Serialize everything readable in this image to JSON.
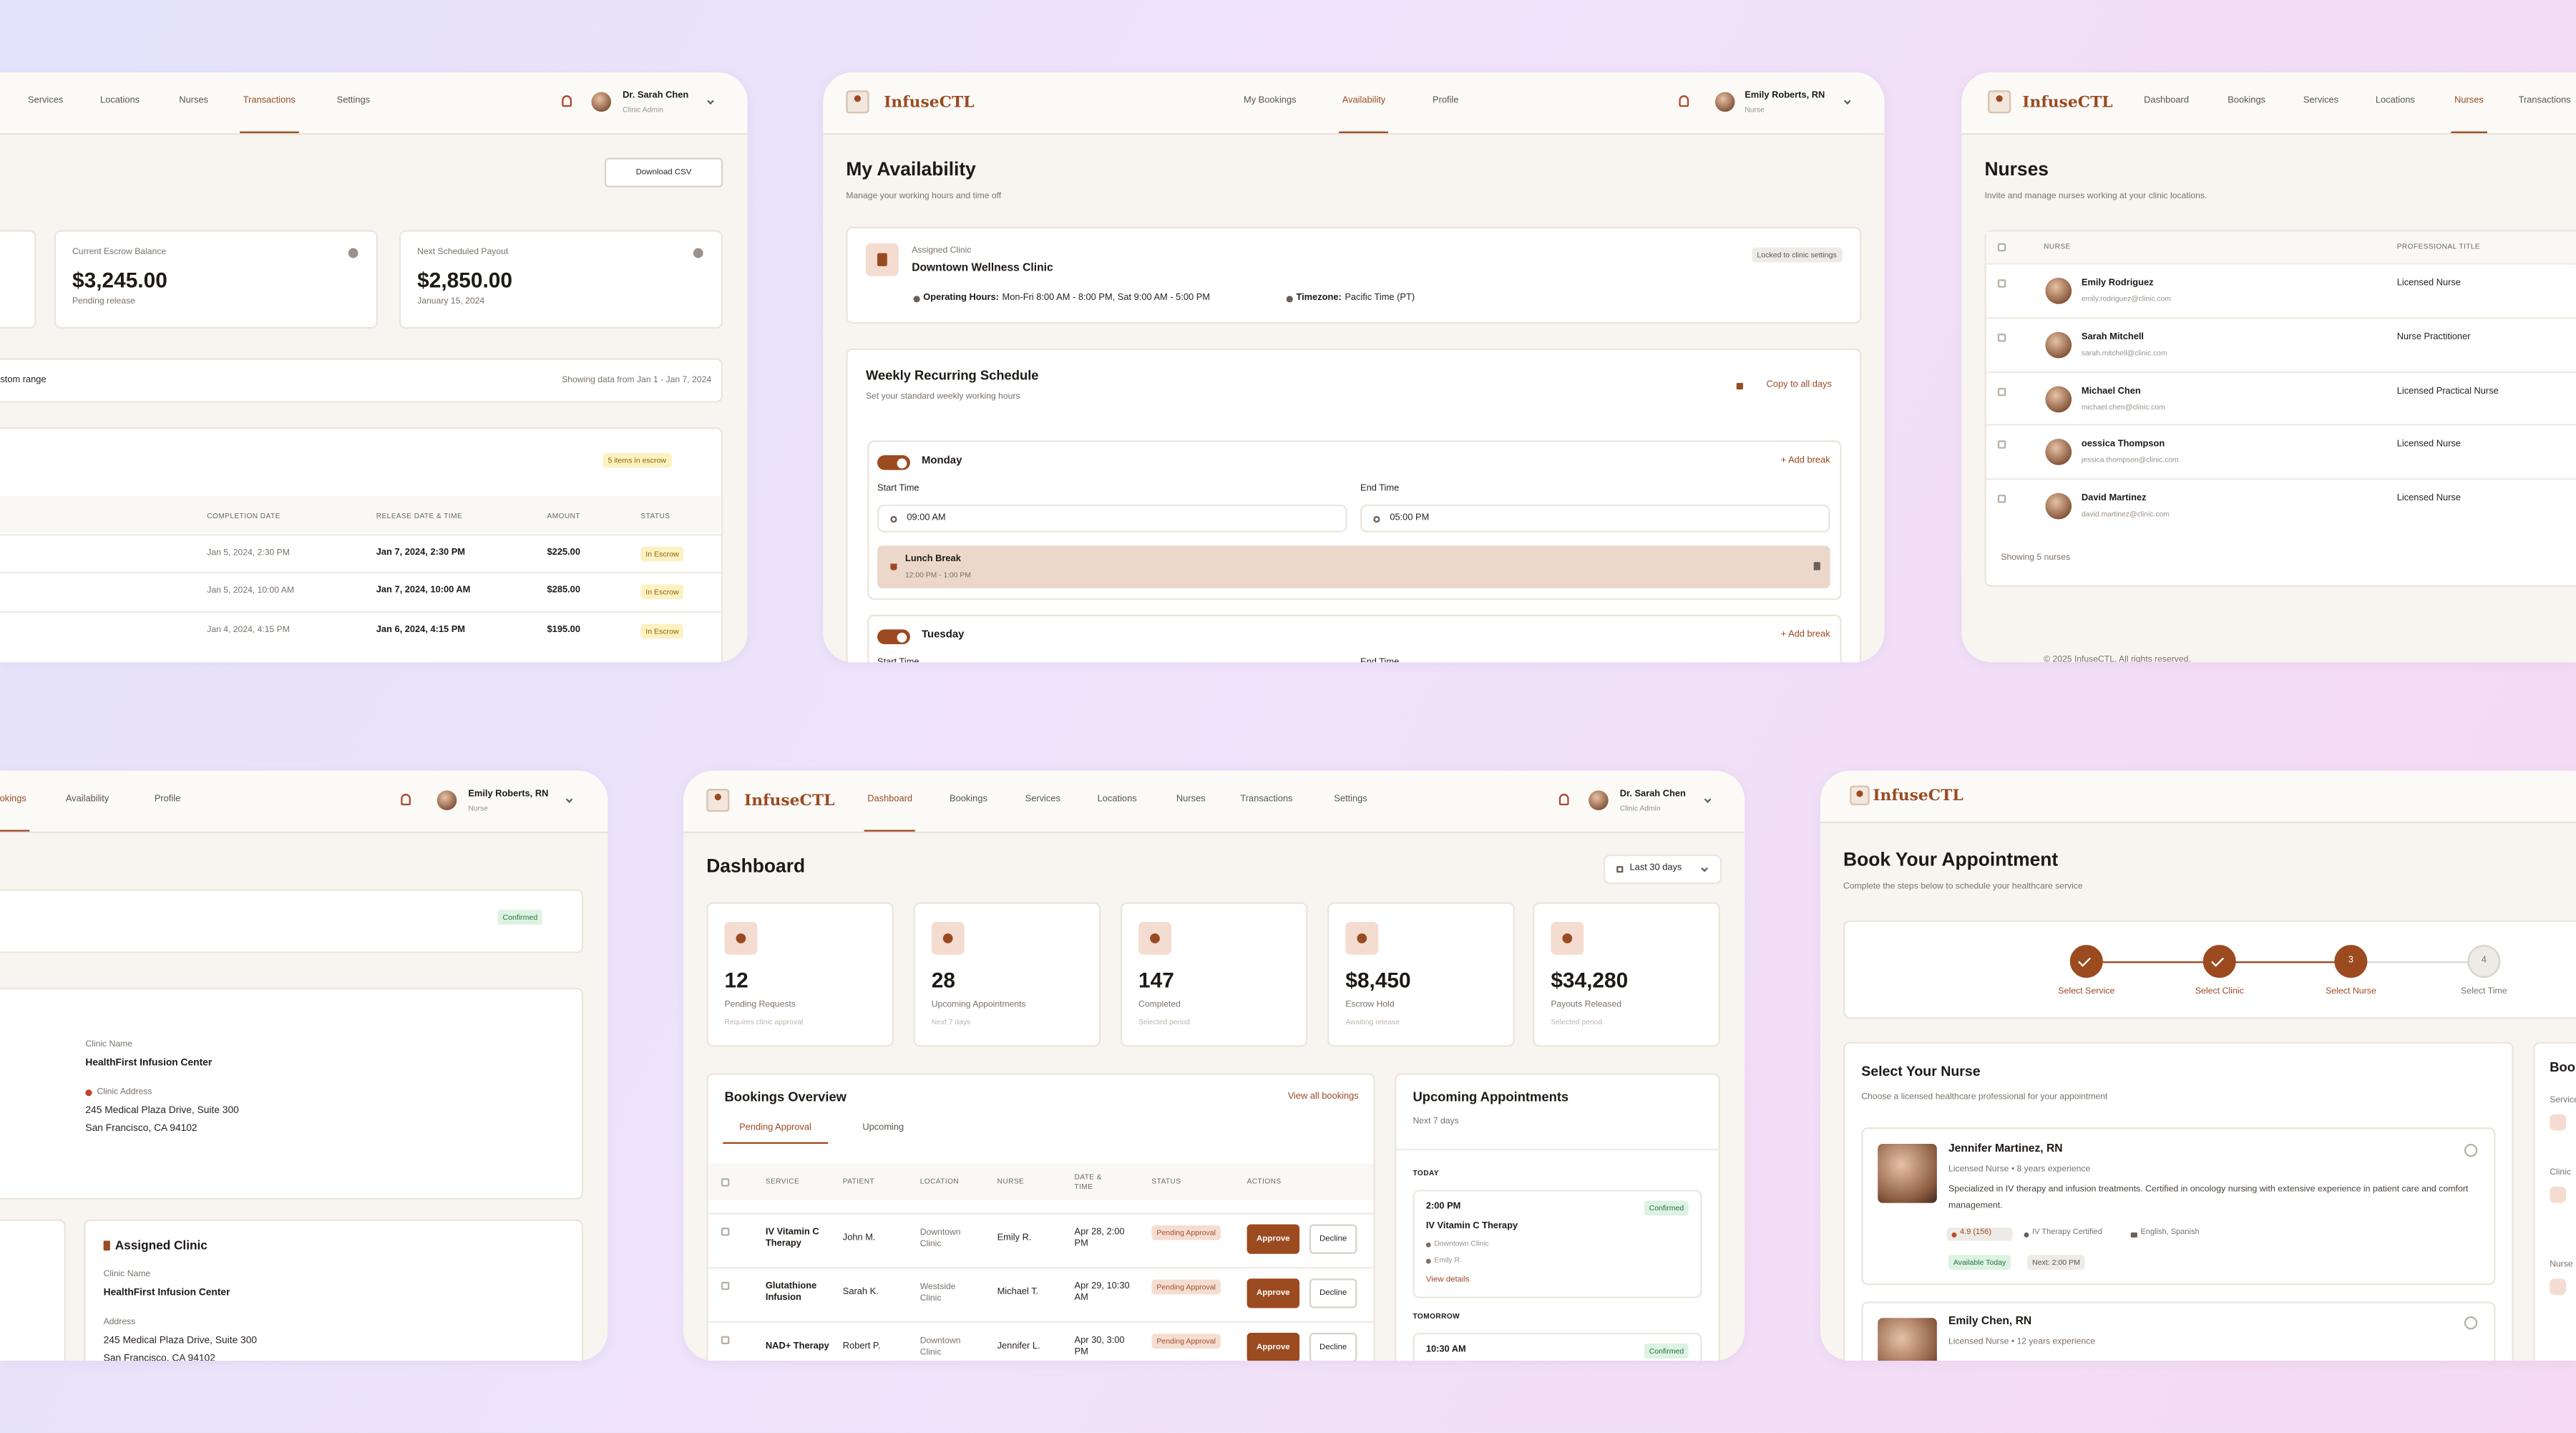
{
  "transactions_panel": {
    "nav": [
      "Services",
      "Locations",
      "Nurses",
      "Transactions",
      "Settings"
    ],
    "user": {
      "name": "Dr. Sarah Chen",
      "role": "Clinic Admin"
    },
    "download_button": "Download CSV",
    "cards": [
      {
        "label": "Current Escrow Balance",
        "value": "$3,245.00",
        "note": "Pending release"
      },
      {
        "label": "Next Scheduled Payout",
        "value": "$2,850.00",
        "note": "January 15, 2024"
      }
    ],
    "filter": "Custom range",
    "range_note": "Showing data from Jan 1 - Jan 7, 2024",
    "escrow_badge": "5 items in escrow",
    "table": {
      "columns": [
        "COMPLETION DATE",
        "RELEASE DATE & TIME",
        "AMOUNT",
        "STATUS"
      ],
      "rows": [
        [
          "Jan 5, 2024, 2:30 PM",
          "Jan 7, 2024, 2:30 PM",
          "$225.00",
          "In Escrow"
        ],
        [
          "Jan 5, 2024, 10:00 AM",
          "Jan 7, 2024, 10:00 AM",
          "$285.00",
          "In Escrow"
        ],
        [
          "Jan 4, 2024, 4:15 PM",
          "Jan 6, 2024, 4:15 PM",
          "$195.00",
          "In Escrow"
        ]
      ]
    }
  },
  "availability_panel": {
    "brand": "InfuseCTL",
    "nav": [
      "My Bookings",
      "Availability",
      "Profile"
    ],
    "user": {
      "name": "Emily Roberts, RN",
      "role": "Nurse"
    },
    "title": "My Availability",
    "subtitle": "Manage your working hours and time off",
    "clinic": {
      "label": "Assigned Clinic",
      "name": "Downtown Wellness Clinic",
      "badge": "Locked to clinic settings",
      "hours_label": "Operating Hours:",
      "hours": "Mon-Fri 8:00 AM - 8:00 PM, Sat 9:00 AM - 5:00 PM",
      "timezone_label": "Timezone:",
      "timezone": "Pacific Time (PT)"
    },
    "schedule": {
      "title": "Weekly Recurring Schedule",
      "subtitle": "Set your standard weekly working hours",
      "copy_button": "Copy to all days",
      "days": [
        {
          "day": "Monday",
          "add_break": "+ Add break",
          "start_label": "Start Time",
          "start": "09:00 AM",
          "end_label": "End Time",
          "end": "05:00 PM",
          "break": {
            "name": "Lunch Break",
            "time": "12:00 PM - 1:00 PM"
          }
        },
        {
          "day": "Tuesday",
          "add_break": "+ Add break",
          "start_label": "Start Time",
          "end_label": "End Time"
        }
      ]
    }
  },
  "nurses_panel": {
    "brand": "InfuseCTL",
    "nav": [
      "Dashboard",
      "Bookings",
      "Services",
      "Locations",
      "Nurses",
      "Transactions"
    ],
    "title": "Nurses",
    "subtitle": "Invite and manage nurses working at your clinic locations.",
    "columns": [
      "NURSE",
      "PROFESSIONAL TITLE"
    ],
    "rows": [
      {
        "name": "Emily Rodriguez",
        "email": "emily.rodriguez@clinic.com",
        "title": "Licensed Nurse"
      },
      {
        "name": "Sarah Mitchell",
        "email": "sarah.mitchell@clinic.com",
        "title": "Nurse Practitioner"
      },
      {
        "name": "Michael Chen",
        "email": "michael.chen@clinic.com",
        "title": "Licensed Practical Nurse"
      },
      {
        "name": "oessica Thompson",
        "email": "jessica.thompson@clinic.com",
        "title": "Licensed Nurse"
      },
      {
        "name": "David Martinez",
        "email": "david.martinez@clinic.com",
        "title": "Licensed Nurse"
      }
    ],
    "footer_note": "Showing 5 nurses",
    "copyright": "© 2025 InfuseCTL. All rights reserved."
  },
  "booking_detail_panel": {
    "nav": [
      "Bookings",
      "Availability",
      "Profile"
    ],
    "user": {
      "name": "Emily Roberts, RN",
      "role": "Nurse"
    },
    "status": "Confirmed",
    "clinic_info": {
      "name_label": "Clinic Name",
      "name": "HealthFirst Infusion Center",
      "address_label": "Clinic Address",
      "address_line1": "245 Medical Plaza Drive, Suite 300",
      "address_line2": "San Francisco, CA 94102"
    },
    "assigned_clinic": {
      "title": "Assigned Clinic",
      "name_label": "Clinic Name",
      "name": "HealthFirst Infusion Center",
      "address_label": "Address",
      "address_line1": "245 Medical Plaza Drive, Suite 300",
      "address_line2": "San Francisco, CA 94102"
    }
  },
  "dashboard_panel": {
    "brand": "InfuseCTL",
    "nav": [
      "Dashboard",
      "Bookings",
      "Services",
      "Locations",
      "Nurses",
      "Transactions",
      "Settings"
    ],
    "user": {
      "name": "Dr. Sarah Chen",
      "role": "Clinic Admin"
    },
    "title": "Dashboard",
    "range_button": "Last 30 days",
    "stats": [
      {
        "value": "12",
        "label": "Pending Requests",
        "note": "Requires clinic approval"
      },
      {
        "value": "28",
        "label": "Upcoming Appointments",
        "note": "Next 7 days"
      },
      {
        "value": "147",
        "label": "Completed",
        "note": "Selected period"
      },
      {
        "value": "$8,450",
        "label": "Escrow Hold",
        "note": "Awaiting release"
      },
      {
        "value": "$34,280",
        "label": "Payouts Released",
        "note": "Selected period"
      }
    ],
    "bookings": {
      "title": "Bookings Overview",
      "link": "View all bookings",
      "tabs": [
        "Pending Approval",
        "Upcoming"
      ],
      "columns": [
        "SERVICE",
        "PATIENT",
        "LOCATION",
        "NURSE",
        "DATE & TIME",
        "STATUS",
        "ACTIONS"
      ],
      "rows": [
        {
          "service": "IV Vitamin C Therapy",
          "patient": "John M.",
          "location": "Downtown Clinic",
          "nurse": "Emily R.",
          "date": "Apr 28, 2:00 PM",
          "status": "Pending Approval",
          "approve": "Approve",
          "decline": "Decline"
        },
        {
          "service": "Glutathione Infusion",
          "patient": "Sarah K.",
          "location": "Westside Clinic",
          "nurse": "Michael T.",
          "date": "Apr 29, 10:30 AM",
          "status": "Pending Approval",
          "approve": "Approve",
          "decline": "Decline"
        },
        {
          "service": "NAD+ Therapy",
          "patient": "Robert P.",
          "location": "Downtown Clinic",
          "nurse": "Jennifer L.",
          "date": "Apr 30, 3:00 PM",
          "status": "Pending Approval",
          "approve": "Approve",
          "decline": "Decline"
        }
      ]
    },
    "upcoming": {
      "title": "Upcoming Appointments",
      "subtitle": "Next 7 days",
      "groups": [
        {
          "label": "TODAY",
          "items": [
            {
              "time": "2:00 PM",
              "status": "Confirmed",
              "service": "IV Vitamin C Therapy",
              "location": "Downtown Clinic",
              "nurse": "Emily R.",
              "link": "View details"
            }
          ]
        },
        {
          "label": "TOMORROW",
          "items": [
            {
              "time": "10:30 AM",
              "status": "Confirmed"
            }
          ]
        }
      ]
    }
  },
  "book_panel": {
    "brand": "InfuseCTL",
    "title": "Book Your Appointment",
    "subtitle": "Complete the steps below to schedule your healthcare service",
    "steps": [
      {
        "label": "Select Service"
      },
      {
        "label": "Select Clinic"
      },
      {
        "number": 3,
        "label": "Select Nurse"
      },
      {
        "number": 4,
        "label": "Select Time"
      }
    ],
    "nurse_section": {
      "title": "Select Your Nurse",
      "subtitle": "Choose a licensed healthcare professional for your appointment",
      "nurses": [
        {
          "name": "Jennifer Martinez, RN",
          "credentials": "Licensed Nurse • 8 years experience",
          "description": "Specialized in IV therapy and infusion treatments. Certified in oncology nursing with extensive experience in patient care and comfort management.",
          "rating": "4.9 (156)",
          "certification": "IV Therapy Certified",
          "languages": "English, Spanish",
          "availability": "Available Today",
          "next": "Next: 2:00 PM"
        },
        {
          "name": "Emily Chen, RN",
          "credentials": "Licensed Nurse • 12 years experience"
        }
      ]
    },
    "summary": {
      "title": "Booking Summary",
      "fields": [
        "Service",
        "Clinic",
        "Nurse"
      ]
    }
  }
}
